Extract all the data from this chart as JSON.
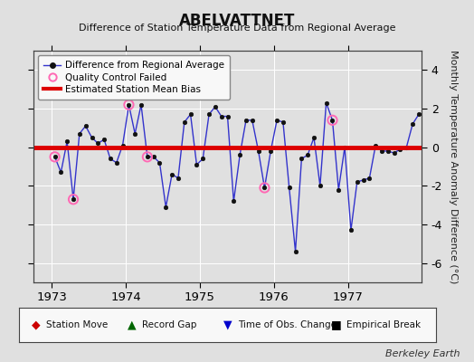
{
  "title": "ABELVATTNET",
  "subtitle": "Difference of Station Temperature Data from Regional Average",
  "ylabel": "Monthly Temperature Anomaly Difference (°C)",
  "xlabel_years": [
    1973,
    1974,
    1975,
    1976,
    1977
  ],
  "bias_value": 0.0,
  "ylim": [
    -7,
    5
  ],
  "yticks": [
    -6,
    -4,
    -2,
    0,
    2,
    4
  ],
  "xlim": [
    1972.75,
    1978.0
  ],
  "bg_color": "#e0e0e0",
  "plot_bg_color": "#e0e0e0",
  "line_color": "#3333cc",
  "bias_color": "#dd0000",
  "qc_color": "#ff69b4",
  "grid_color": "#ffffff",
  "berkeley_earth_text": "Berkeley Earth",
  "data_x": [
    1973.042,
    1973.125,
    1973.208,
    1973.292,
    1973.375,
    1973.458,
    1973.542,
    1973.625,
    1973.708,
    1973.792,
    1973.875,
    1973.958,
    1974.042,
    1974.125,
    1974.208,
    1974.292,
    1974.375,
    1974.458,
    1974.542,
    1974.625,
    1974.708,
    1974.792,
    1974.875,
    1974.958,
    1975.042,
    1975.125,
    1975.208,
    1975.292,
    1975.375,
    1975.458,
    1975.542,
    1975.625,
    1975.708,
    1975.792,
    1975.875,
    1975.958,
    1976.042,
    1976.125,
    1976.208,
    1976.292,
    1976.375,
    1976.458,
    1976.542,
    1976.625,
    1976.708,
    1976.792,
    1976.875,
    1976.958,
    1977.042,
    1977.125,
    1977.208,
    1977.292,
    1977.375,
    1977.458,
    1977.542,
    1977.625,
    1977.708,
    1977.792,
    1977.875,
    1977.958
  ],
  "data_y": [
    -0.5,
    -1.3,
    0.3,
    -2.7,
    0.7,
    1.1,
    0.5,
    0.2,
    0.4,
    -0.6,
    -0.8,
    0.1,
    2.2,
    0.7,
    2.2,
    -0.5,
    -0.5,
    -0.8,
    -3.1,
    -1.4,
    -1.6,
    1.3,
    1.7,
    -0.9,
    -0.6,
    1.7,
    2.1,
    1.6,
    1.6,
    -2.8,
    -0.4,
    1.4,
    1.4,
    -0.2,
    -2.1,
    -0.2,
    1.4,
    1.3,
    -2.1,
    -5.4,
    -0.6,
    -0.4,
    0.5,
    -2.0,
    2.3,
    1.4,
    -2.2,
    0.0,
    -4.3,
    -1.8,
    -1.7,
    -1.6,
    0.1,
    -0.2,
    -0.2,
    -0.3,
    -0.1,
    0.0,
    1.2,
    1.7
  ],
  "qc_failed_indices": [
    0,
    3,
    12,
    15,
    34,
    45
  ],
  "legend_entries": [
    "Difference from Regional Average",
    "Quality Control Failed",
    "Estimated Station Mean Bias"
  ],
  "bottom_legend": {
    "symbols": [
      "◆",
      "▲",
      "▼",
      "■"
    ],
    "colors": [
      "#cc0000",
      "#006600",
      "#0000cc",
      "#000000"
    ],
    "labels": [
      "Station Move",
      "Record Gap",
      "Time of Obs. Change",
      "Empirical Break"
    ]
  }
}
